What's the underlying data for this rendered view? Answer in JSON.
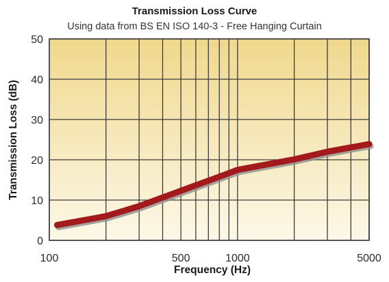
{
  "chart_data": {
    "type": "line",
    "title": "Transmission Loss Curve",
    "subtitle": "Using data from BS EN ISO 140-3 - Free Hanging Curtain",
    "xlabel": "Frequency (Hz)",
    "ylabel": "Transmission Loss (dB)",
    "x_scale": "log",
    "xlim": [
      100,
      5000
    ],
    "ylim": [
      0,
      50
    ],
    "x_ticks": [
      100,
      500,
      1000,
      5000
    ],
    "x_tick_labels": [
      "100",
      "500",
      "1000",
      "5000"
    ],
    "y_ticks": [
      0,
      10,
      20,
      30,
      40,
      50
    ],
    "y_tick_labels": [
      "0",
      "10",
      "20",
      "30",
      "40",
      "50"
    ],
    "grid": true,
    "series": [
      {
        "x": [
          110,
          200,
          300,
          500,
          800,
          1000,
          2000,
          3000,
          5000
        ],
        "y": [
          3.8,
          6.0,
          8.5,
          12.3,
          15.8,
          17.5,
          20.1,
          22.0,
          23.9
        ]
      }
    ],
    "colors": {
      "line": "#a31a1d",
      "shadow": "#8f8f8f",
      "grid": "#3a3a3a",
      "bg_top": "#f0d88c",
      "bg_bottom": "#fdf8e8"
    }
  }
}
